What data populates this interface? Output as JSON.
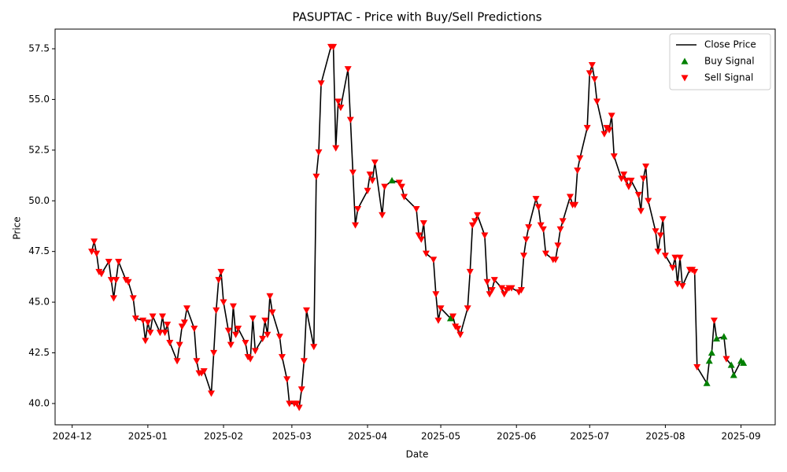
{
  "chart_data": {
    "type": "line",
    "title": "PASUPTAC - Price with Buy/Sell Predictions",
    "x_label": "Date",
    "y_label": "Price",
    "legend": "upper right",
    "grid": false,
    "xlim": [
      "2024-11-24",
      "2025-09-15"
    ],
    "xticks": [
      {
        "value": "2024-12-01",
        "label": "2024-12"
      },
      {
        "value": "2025-01-01",
        "label": "2025-01"
      },
      {
        "value": "2025-02-01",
        "label": "2025-02"
      },
      {
        "value": "2025-03-01",
        "label": "2025-03"
      },
      {
        "value": "2025-04-01",
        "label": "2025-04"
      },
      {
        "value": "2025-05-01",
        "label": "2025-05"
      },
      {
        "value": "2025-06-01",
        "label": "2025-06"
      },
      {
        "value": "2025-07-01",
        "label": "2025-07"
      },
      {
        "value": "2025-08-01",
        "label": "2025-08"
      },
      {
        "value": "2025-09-01",
        "label": "2025-09"
      }
    ],
    "ylim": [
      38.95,
      58.47
    ],
    "yticks": [
      {
        "value": 40,
        "label": "40.0"
      },
      {
        "value": 42.5,
        "label": "42.5"
      },
      {
        "value": 45,
        "label": "45.0"
      },
      {
        "value": 47.5,
        "label": "47.5"
      },
      {
        "value": 50,
        "label": "50.0"
      },
      {
        "value": 52.5,
        "label": "52.5"
      },
      {
        "value": 55,
        "label": "55.0"
      },
      {
        "value": 57.5,
        "label": "57.5"
      }
    ],
    "x": [
      "2024-12-09",
      "2024-12-10",
      "2024-12-11",
      "2024-12-12",
      "2024-12-13",
      "2024-12-16",
      "2024-12-17",
      "2024-12-18",
      "2024-12-19",
      "2024-12-20",
      "2024-12-23",
      "2024-12-24",
      "2024-12-26",
      "2024-12-27",
      "2024-12-30",
      "2024-12-31",
      "2025-01-01",
      "2025-01-02",
      "2025-01-03",
      "2025-01-06",
      "2025-01-07",
      "2025-01-08",
      "2025-01-09",
      "2025-01-10",
      "2025-01-13",
      "2025-01-14",
      "2025-01-15",
      "2025-01-16",
      "2025-01-17",
      "2025-01-20",
      "2025-01-21",
      "2025-01-22",
      "2025-01-23",
      "2025-01-24",
      "2025-01-27",
      "2025-01-28",
      "2025-01-29",
      "2025-01-30",
      "2025-01-31",
      "2025-02-01",
      "2025-02-03",
      "2025-02-04",
      "2025-02-05",
      "2025-02-06",
      "2025-02-07",
      "2025-02-10",
      "2025-02-11",
      "2025-02-12",
      "2025-02-13",
      "2025-02-14",
      "2025-02-17",
      "2025-02-18",
      "2025-02-19",
      "2025-02-20",
      "2025-02-21",
      "2025-02-24",
      "2025-02-25",
      "2025-02-27",
      "2025-02-28",
      "2025-03-02",
      "2025-03-03",
      "2025-03-04",
      "2025-03-05",
      "2025-03-06",
      "2025-03-07",
      "2025-03-10",
      "2025-03-11",
      "2025-03-12",
      "2025-03-13",
      "2025-03-17",
      "2025-03-18",
      "2025-03-19",
      "2025-03-20",
      "2025-03-21",
      "2025-03-24",
      "2025-03-25",
      "2025-03-26",
      "2025-03-27",
      "2025-03-28",
      "2025-04-01",
      "2025-04-02",
      "2025-04-03",
      "2025-04-04",
      "2025-04-07",
      "2025-04-08",
      "2025-04-11",
      "2025-04-14",
      "2025-04-15",
      "2025-04-16",
      "2025-04-21",
      "2025-04-22",
      "2025-04-23",
      "2025-04-24",
      "2025-04-25",
      "2025-04-28",
      "2025-04-29",
      "2025-04-30",
      "2025-05-01",
      "2025-05-05",
      "2025-05-06",
      "2025-05-07",
      "2025-05-08",
      "2025-05-09",
      "2025-05-12",
      "2025-05-13",
      "2025-05-14",
      "2025-05-15",
      "2025-05-16",
      "2025-05-19",
      "2025-05-20",
      "2025-05-21",
      "2025-05-22",
      "2025-05-23",
      "2025-05-26",
      "2025-05-27",
      "2025-05-28",
      "2025-05-29",
      "2025-05-30",
      "2025-06-02",
      "2025-06-03",
      "2025-06-04",
      "2025-06-05",
      "2025-06-06",
      "2025-06-09",
      "2025-06-10",
      "2025-06-11",
      "2025-06-12",
      "2025-06-13",
      "2025-06-16",
      "2025-06-17",
      "2025-06-18",
      "2025-06-19",
      "2025-06-20",
      "2025-06-23",
      "2025-06-24",
      "2025-06-25",
      "2025-06-26",
      "2025-06-27",
      "2025-06-30",
      "2025-07-01",
      "2025-07-02",
      "2025-07-03",
      "2025-07-04",
      "2025-07-07",
      "2025-07-08",
      "2025-07-09",
      "2025-07-10",
      "2025-07-11",
      "2025-07-14",
      "2025-07-15",
      "2025-07-16",
      "2025-07-17",
      "2025-07-18",
      "2025-07-21",
      "2025-07-22",
      "2025-07-23",
      "2025-07-24",
      "2025-07-25",
      "2025-07-28",
      "2025-07-29",
      "2025-07-30",
      "2025-07-31",
      "2025-08-01",
      "2025-08-04",
      "2025-08-05",
      "2025-08-06",
      "2025-08-07",
      "2025-08-08",
      "2025-08-11",
      "2025-08-12",
      "2025-08-13",
      "2025-08-14",
      "2025-08-18",
      "2025-08-19",
      "2025-08-20",
      "2025-08-21",
      "2025-08-22",
      "2025-08-25",
      "2025-08-26",
      "2025-08-28",
      "2025-08-29",
      "2025-09-01",
      "2025-09-02"
    ],
    "series": [
      {
        "name": "Close Price",
        "color": "#000000",
        "values": [
          47.5,
          48.0,
          47.4,
          46.5,
          46.4,
          47.0,
          46.1,
          45.2,
          46.1,
          47.0,
          46.1,
          46.0,
          45.2,
          44.2,
          44.1,
          43.1,
          44.0,
          43.5,
          44.3,
          43.5,
          44.3,
          43.5,
          43.9,
          43.0,
          42.1,
          42.9,
          43.8,
          44.0,
          44.7,
          43.7,
          42.1,
          41.5,
          41.5,
          41.6,
          40.5,
          42.5,
          44.6,
          46.1,
          46.5,
          45.0,
          43.6,
          42.9,
          44.8,
          43.4,
          43.7,
          43.0,
          42.3,
          42.2,
          44.2,
          42.6,
          43.2,
          44.1,
          43.4,
          45.3,
          44.5,
          43.3,
          42.3,
          41.2,
          40.0,
          40.0,
          40.0,
          39.8,
          40.7,
          42.1,
          44.6,
          42.8,
          51.2,
          52.4,
          55.8,
          57.6,
          57.6,
          52.6,
          54.9,
          54.6,
          56.5,
          54.0,
          51.4,
          48.8,
          49.6,
          50.5,
          51.3,
          51.0,
          51.9,
          49.3,
          50.7,
          51.0,
          50.9,
          50.7,
          50.2,
          49.6,
          48.3,
          48.1,
          48.9,
          47.4,
          47.1,
          45.4,
          44.1,
          44.7,
          44.2,
          44.3,
          43.8,
          43.7,
          43.4,
          44.7,
          46.5,
          48.8,
          49.0,
          49.3,
          48.3,
          46.0,
          45.4,
          45.6,
          46.1,
          45.7,
          45.4,
          45.6,
          45.7,
          45.7,
          45.5,
          45.6,
          47.3,
          48.1,
          48.7,
          50.1,
          49.7,
          48.8,
          48.6,
          47.4,
          47.1,
          47.1,
          47.8,
          48.6,
          49.0,
          50.2,
          49.8,
          49.8,
          51.5,
          52.1,
          53.6,
          56.3,
          56.7,
          56.0,
          54.9,
          53.3,
          53.6,
          53.5,
          54.2,
          52.2,
          51.1,
          51.3,
          51.0,
          50.7,
          51.0,
          50.3,
          49.5,
          51.1,
          51.7,
          50.0,
          48.5,
          47.5,
          48.3,
          49.1,
          47.3,
          46.7,
          47.2,
          45.9,
          47.2,
          45.8,
          46.6,
          46.6,
          46.5,
          41.8,
          41.0,
          42.1,
          42.5,
          44.1,
          43.2,
          43.3,
          42.2,
          41.9,
          41.4,
          42.1,
          42.0
        ]
      },
      {
        "name": "Buy Signal",
        "color": "#008000",
        "marker": "triangle-up",
        "values": [
          null,
          null,
          null,
          null,
          null,
          null,
          null,
          null,
          null,
          null,
          null,
          null,
          null,
          null,
          null,
          null,
          null,
          null,
          null,
          null,
          null,
          null,
          null,
          null,
          null,
          null,
          null,
          null,
          null,
          null,
          null,
          null,
          null,
          null,
          null,
          null,
          null,
          null,
          null,
          null,
          null,
          null,
          null,
          null,
          null,
          null,
          null,
          null,
          null,
          null,
          null,
          null,
          null,
          null,
          null,
          null,
          null,
          null,
          null,
          null,
          null,
          null,
          null,
          null,
          null,
          null,
          null,
          null,
          null,
          null,
          null,
          null,
          null,
          null,
          null,
          null,
          null,
          null,
          null,
          null,
          null,
          null,
          null,
          null,
          null,
          51.0,
          null,
          null,
          null,
          null,
          null,
          null,
          null,
          null,
          null,
          null,
          null,
          null,
          44.2,
          null,
          null,
          null,
          null,
          null,
          null,
          null,
          null,
          null,
          null,
          null,
          null,
          null,
          null,
          null,
          null,
          null,
          null,
          null,
          null,
          null,
          null,
          null,
          null,
          null,
          null,
          null,
          null,
          null,
          null,
          null,
          null,
          null,
          null,
          null,
          null,
          null,
          null,
          null,
          null,
          null,
          null,
          null,
          null,
          null,
          null,
          null,
          null,
          null,
          null,
          null,
          null,
          null,
          null,
          null,
          null,
          null,
          null,
          null,
          null,
          null,
          null,
          null,
          null,
          null,
          null,
          null,
          null,
          null,
          null,
          null,
          null,
          null,
          41.0,
          42.1,
          42.5,
          null,
          43.2,
          43.3,
          null,
          41.9,
          41.4,
          42.1,
          42.0
        ]
      },
      {
        "name": "Sell Signal",
        "color": "#ff0000",
        "marker": "triangle-down",
        "values": [
          47.5,
          48.0,
          47.4,
          46.5,
          46.4,
          47.0,
          46.1,
          45.2,
          46.1,
          47.0,
          46.1,
          46.0,
          45.2,
          44.2,
          44.1,
          43.1,
          44.0,
          43.5,
          44.3,
          43.5,
          44.3,
          43.5,
          43.9,
          43.0,
          42.1,
          42.9,
          43.8,
          44.0,
          44.7,
          43.7,
          42.1,
          41.5,
          41.5,
          41.6,
          40.5,
          42.5,
          44.6,
          46.1,
          46.5,
          45.0,
          43.6,
          42.9,
          44.8,
          43.4,
          43.7,
          43.0,
          42.3,
          42.2,
          44.2,
          42.6,
          43.2,
          44.1,
          43.4,
          45.3,
          44.5,
          43.3,
          42.3,
          41.2,
          40.0,
          40.0,
          40.0,
          39.8,
          40.7,
          42.1,
          44.6,
          42.8,
          51.2,
          52.4,
          55.8,
          57.6,
          57.6,
          52.6,
          54.9,
          54.6,
          56.5,
          54.0,
          51.4,
          48.8,
          49.6,
          50.5,
          51.3,
          51.0,
          51.9,
          49.3,
          50.7,
          null,
          50.9,
          50.7,
          50.2,
          49.6,
          48.3,
          48.1,
          48.9,
          47.4,
          47.1,
          45.4,
          44.1,
          44.7,
          null,
          44.3,
          43.8,
          43.7,
          43.4,
          44.7,
          46.5,
          48.8,
          49.0,
          49.3,
          48.3,
          46.0,
          45.4,
          45.6,
          46.1,
          45.7,
          45.4,
          45.6,
          45.7,
          45.7,
          45.5,
          45.6,
          47.3,
          48.1,
          48.7,
          50.1,
          49.7,
          48.8,
          48.6,
          47.4,
          47.1,
          47.1,
          47.8,
          48.6,
          49.0,
          50.2,
          49.8,
          49.8,
          51.5,
          52.1,
          53.6,
          56.3,
          56.7,
          56.0,
          54.9,
          53.3,
          53.6,
          53.5,
          54.2,
          52.2,
          51.1,
          51.3,
          51.0,
          50.7,
          51.0,
          50.3,
          49.5,
          51.1,
          51.7,
          50.0,
          48.5,
          47.5,
          48.3,
          49.1,
          47.3,
          46.7,
          47.2,
          45.9,
          47.2,
          45.8,
          46.6,
          46.6,
          46.5,
          41.8,
          null,
          null,
          null,
          44.1,
          null,
          null,
          42.2,
          null,
          null,
          null,
          null
        ]
      }
    ]
  }
}
